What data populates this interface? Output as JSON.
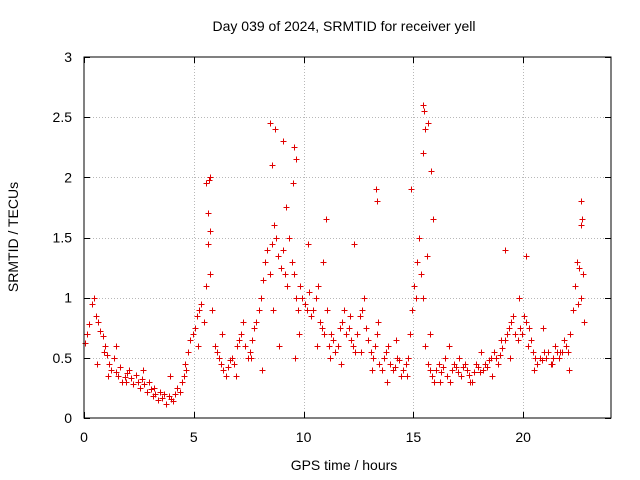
{
  "chart_data": {
    "type": "scatter",
    "title": "Day 039 of 2024, SRMTID for receiver yell",
    "xlabel": "GPS time / hours",
    "ylabel": "SRMTID / TECUs",
    "xlim": [
      0,
      24
    ],
    "ylim": [
      0,
      3
    ],
    "x_ticks": [
      0,
      5,
      10,
      15,
      20
    ],
    "x_tick_labels": [
      "0",
      "5",
      "10",
      "15",
      "20"
    ],
    "y_ticks": [
      0,
      0.5,
      1,
      1.5,
      2,
      2.5,
      3
    ],
    "y_tick_labels": [
      "0",
      "0.5",
      "1",
      "1.5",
      "2",
      "2.5",
      "3"
    ],
    "grid": true,
    "legend": false,
    "marker": "+",
    "marker_color": "#e00000",
    "series": [
      {
        "name": "SRMTID",
        "x": [
          0.05,
          0.15,
          0.25,
          0.35,
          0.45,
          0.55,
          0.65,
          0.75,
          0.85,
          0.95,
          1.05,
          1.15,
          1.25,
          1.35,
          1.45,
          1.55,
          1.65,
          1.75,
          1.85,
          1.95,
          2.05,
          2.15,
          2.25,
          2.35,
          2.45,
          2.55,
          2.65,
          2.75,
          2.85,
          2.95,
          3.05,
          3.15,
          3.25,
          3.35,
          3.45,
          3.55,
          3.65,
          3.75,
          3.85,
          3.95,
          4.05,
          4.15,
          4.25,
          4.35,
          4.45,
          4.55,
          4.65,
          4.75,
          4.85,
          4.95,
          5.05,
          5.15,
          5.25,
          5.35,
          5.45,
          5.55,
          5.65,
          5.75,
          5.85,
          5.95,
          6.05,
          6.15,
          6.25,
          6.35,
          6.45,
          6.55,
          6.65,
          6.75,
          6.85,
          6.95,
          7.05,
          7.15,
          7.25,
          7.35,
          7.45,
          7.55,
          7.65,
          7.75,
          7.85,
          7.95,
          8.05,
          8.15,
          8.25,
          8.35,
          8.45,
          8.55,
          8.65,
          8.75,
          8.85,
          8.95,
          9.05,
          9.15,
          9.25,
          9.35,
          9.45,
          9.55,
          9.65,
          9.75,
          9.85,
          9.95,
          10.05,
          10.15,
          10.25,
          10.35,
          10.45,
          10.55,
          10.65,
          10.75,
          10.85,
          10.95,
          11.05,
          11.15,
          11.25,
          11.35,
          11.45,
          11.55,
          11.65,
          11.75,
          11.85,
          11.95,
          12.05,
          12.15,
          12.25,
          12.35,
          12.45,
          12.55,
          12.65,
          12.75,
          12.85,
          12.95,
          13.05,
          13.15,
          13.25,
          13.35,
          13.45,
          13.55,
          13.65,
          13.75,
          13.85,
          13.95,
          14.05,
          14.15,
          14.25,
          14.35,
          14.45,
          14.55,
          14.65,
          14.75,
          14.85,
          14.95,
          15.05,
          15.15,
          15.25,
          15.35,
          15.45,
          15.55,
          15.65,
          15.75,
          15.85,
          15.95,
          16.05,
          16.15,
          16.25,
          16.35,
          16.45,
          16.55,
          16.65,
          16.75,
          16.85,
          16.95,
          17.05,
          17.15,
          17.25,
          17.35,
          17.45,
          17.55,
          17.65,
          17.75,
          17.85,
          17.95,
          18.05,
          18.15,
          18.25,
          18.35,
          18.45,
          18.55,
          18.65,
          18.75,
          18.85,
          18.95,
          19.05,
          19.15,
          19.25,
          19.35,
          19.45,
          19.55,
          19.65,
          19.75,
          19.85,
          19.95,
          20.05,
          20.15,
          20.25,
          20.35,
          20.45,
          20.55,
          20.65,
          20.75,
          20.85,
          20.95,
          21.05,
          21.15,
          21.25,
          21.35,
          21.45,
          21.55,
          21.65,
          21.75,
          21.85,
          21.95,
          22.05,
          22.15,
          22.25,
          22.35,
          22.45,
          22.55,
          22.65,
          22.75,
          0.6,
          0.9,
          1.1,
          1.45,
          1.9,
          2.7,
          3.2,
          3.9,
          4.6,
          5.2,
          5.55,
          5.65,
          5.72,
          6.3,
          6.9,
          7.6,
          8.1,
          8.6,
          8.9,
          9.2,
          9.6,
          9.8,
          10.2,
          10.6,
          10.9,
          11.2,
          11.7,
          12.1,
          12.6,
          13.1,
          13.4,
          13.8,
          14.2,
          14.7,
          15.1,
          15.45,
          15.6,
          15.75,
          16.2,
          16.6,
          17.1,
          17.6,
          18.1,
          18.6,
          19.0,
          19.4,
          19.8,
          20.2,
          20.5,
          20.9,
          21.3,
          21.7,
          22.1,
          22.5,
          22.62,
          22.72,
          8.45,
          8.55,
          8.7,
          9.55,
          9.65,
          9.05,
          9.5,
          13.3,
          13.35,
          14.9,
          15.45,
          15.5,
          15.55,
          15.65,
          15.8,
          15.9,
          5.7,
          5.75,
          11.0,
          12.3,
          19.15,
          20.15,
          22.65,
          22.7
        ],
        "y": [
          0.62,
          0.7,
          0.78,
          0.95,
          1.0,
          0.85,
          0.8,
          0.72,
          0.68,
          0.6,
          0.52,
          0.45,
          0.4,
          0.5,
          0.38,
          0.35,
          0.42,
          0.3,
          0.34,
          0.37,
          0.4,
          0.33,
          0.28,
          0.36,
          0.3,
          0.25,
          0.32,
          0.28,
          0.22,
          0.3,
          0.24,
          0.18,
          0.2,
          0.15,
          0.22,
          0.17,
          0.2,
          0.12,
          0.18,
          0.16,
          0.14,
          0.2,
          0.25,
          0.22,
          0.3,
          0.35,
          0.4,
          0.55,
          0.65,
          0.7,
          0.75,
          0.85,
          0.9,
          0.95,
          0.8,
          1.1,
          1.45,
          1.2,
          0.9,
          0.6,
          0.55,
          0.5,
          0.45,
          0.4,
          0.35,
          0.42,
          0.48,
          0.5,
          0.45,
          0.6,
          0.65,
          0.7,
          0.8,
          0.6,
          0.5,
          0.55,
          0.65,
          0.75,
          0.8,
          0.9,
          1.0,
          1.15,
          1.3,
          1.4,
          1.2,
          1.45,
          1.6,
          1.5,
          1.35,
          1.25,
          1.4,
          1.2,
          1.1,
          1.5,
          1.3,
          1.2,
          1.0,
          0.9,
          1.1,
          1.0,
          0.95,
          0.9,
          1.05,
          0.85,
          0.9,
          1.0,
          1.1,
          0.8,
          0.75,
          0.7,
          0.9,
          0.6,
          0.7,
          0.65,
          0.55,
          0.6,
          0.75,
          0.8,
          0.9,
          0.7,
          0.75,
          0.65,
          0.6,
          0.55,
          0.7,
          0.85,
          0.9,
          1.0,
          0.75,
          0.65,
          0.55,
          0.5,
          0.6,
          0.7,
          0.45,
          0.4,
          0.5,
          0.55,
          0.6,
          0.45,
          0.4,
          0.42,
          0.5,
          0.48,
          0.35,
          0.4,
          0.45,
          0.5,
          0.7,
          0.9,
          1.1,
          1.3,
          1.5,
          1.2,
          1.0,
          0.6,
          0.45,
          0.4,
          0.35,
          0.3,
          0.4,
          0.45,
          0.38,
          0.42,
          0.5,
          0.35,
          0.3,
          0.4,
          0.45,
          0.42,
          0.38,
          0.35,
          0.42,
          0.45,
          0.4,
          0.36,
          0.3,
          0.38,
          0.45,
          0.42,
          0.38,
          0.4,
          0.45,
          0.42,
          0.48,
          0.5,
          0.55,
          0.5,
          0.45,
          0.52,
          0.58,
          0.65,
          0.7,
          0.75,
          0.8,
          0.85,
          0.7,
          0.65,
          0.75,
          0.7,
          0.85,
          0.8,
          0.75,
          0.65,
          0.55,
          0.5,
          0.45,
          0.5,
          0.48,
          0.55,
          0.5,
          0.55,
          0.45,
          0.5,
          0.6,
          0.55,
          0.5,
          0.55,
          0.65,
          0.6,
          0.55,
          0.7,
          0.9,
          1.1,
          1.3,
          1.25,
          1.0,
          0.8,
          0.45,
          0.55,
          0.35,
          0.6,
          0.3,
          0.4,
          0.25,
          0.35,
          0.45,
          0.6,
          1.95,
          1.7,
          2.0,
          0.7,
          0.35,
          0.5,
          0.4,
          0.9,
          0.6,
          1.75,
          0.5,
          0.7,
          1.45,
          0.6,
          1.3,
          0.5,
          0.45,
          0.85,
          0.55,
          0.4,
          0.8,
          0.3,
          0.65,
          0.35,
          1.0,
          2.2,
          1.35,
          0.7,
          0.3,
          0.6,
          0.5,
          0.3,
          0.55,
          0.35,
          0.65,
          0.5,
          1.0,
          0.6,
          0.4,
          0.75,
          0.45,
          0.55,
          0.4,
          0.95,
          1.6,
          1.2,
          2.45,
          2.1,
          2.4,
          2.25,
          2.15,
          2.3,
          1.95,
          1.9,
          1.8,
          1.9,
          2.6,
          2.55,
          2.4,
          2.45,
          2.05,
          1.65,
          1.98,
          1.55,
          1.65,
          1.45,
          1.4,
          1.35,
          1.8,
          1.65
        ]
      }
    ]
  }
}
